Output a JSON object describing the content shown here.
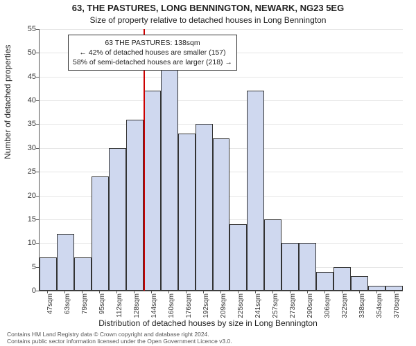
{
  "title_main": "63, THE PASTURES, LONG BENNINGTON, NEWARK, NG23 5EG",
  "title_sub": "Size of property relative to detached houses in Long Bennington",
  "ylabel": "Number of detached properties",
  "xlabel": "Distribution of detached houses by size in Long Bennington",
  "footer_line1": "Contains HM Land Registry data © Crown copyright and database right 2024.",
  "footer_line2": "Contains public sector information licensed under the Open Government Licence v3.0.",
  "chart": {
    "type": "histogram",
    "ylim": [
      0,
      55
    ],
    "ytick_step": 5,
    "bar_fill": "#cfd8ef",
    "bar_stroke": "#333333",
    "grid_color": "#e5e5e5",
    "background": "#ffffff",
    "refline_x_index": 6,
    "refline_color": "#cc0000",
    "xticks": [
      "47sqm",
      "63sqm",
      "79sqm",
      "95sqm",
      "112sqm",
      "128sqm",
      "144sqm",
      "160sqm",
      "176sqm",
      "192sqm",
      "209sqm",
      "225sqm",
      "241sqm",
      "257sqm",
      "273sqm",
      "290sqm",
      "306sqm",
      "322sqm",
      "338sqm",
      "354sqm",
      "370sqm"
    ],
    "values": [
      7,
      12,
      7,
      24,
      30,
      36,
      42,
      50,
      33,
      35,
      32,
      14,
      42,
      15,
      10,
      10,
      4,
      5,
      3,
      1,
      1
    ]
  },
  "infobox": {
    "line1": "63 THE PASTURES: 138sqm",
    "line2": "← 42% of detached houses are smaller (157)",
    "line3": "58% of semi-detached houses are larger (218) →"
  }
}
